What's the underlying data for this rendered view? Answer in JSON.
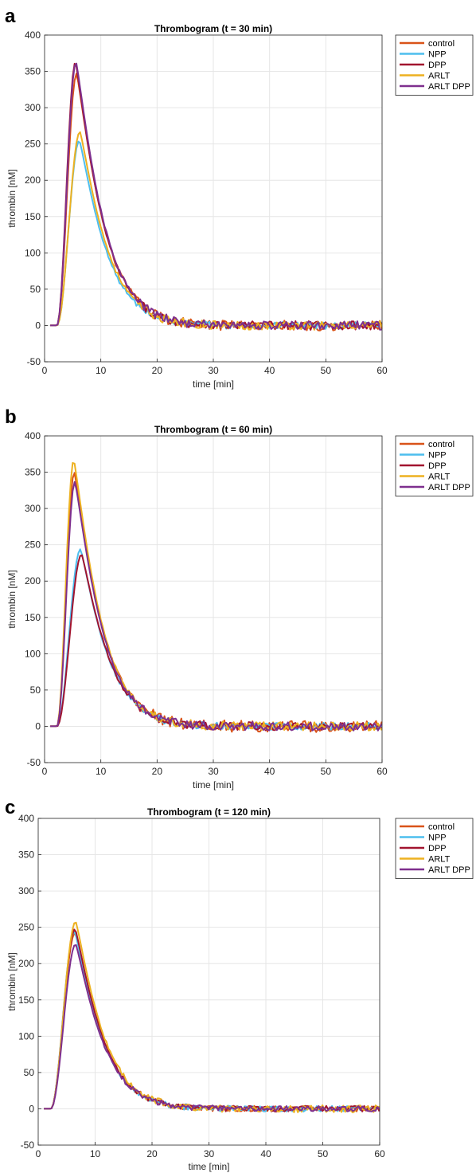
{
  "figure": {
    "panel_labels": [
      "a",
      "b",
      "c"
    ]
  },
  "series_colors": {
    "control": "#D95319",
    "NPP": "#4DBEEE",
    "DPP": "#A2142F",
    "ARLT": "#EDB120",
    "ARLT DPP": "#7E2F8E"
  },
  "chart_data": [
    {
      "type": "line",
      "panel": "a",
      "title": "Thrombogram (t = 30 min)",
      "xlabel": "time [min]",
      "ylabel": "thrombin [nM]",
      "xlim": [
        0,
        60
      ],
      "ylim": [
        -50,
        400
      ],
      "xticks": [
        0,
        10,
        20,
        30,
        40,
        50,
        60
      ],
      "yticks": [
        -50,
        0,
        50,
        100,
        150,
        200,
        250,
        300,
        350,
        400
      ],
      "grid": true,
      "legend_position": "outside-top-right",
      "series": [
        {
          "name": "control",
          "x_start": 1,
          "x_end": 60,
          "peak": 347,
          "peak_time": 5.7,
          "noise": 7
        },
        {
          "name": "NPP",
          "x_start": 1,
          "x_end": 60,
          "peak": 255,
          "peak_time": 6.2,
          "noise": 5
        },
        {
          "name": "DPP",
          "x_start": 1,
          "x_end": 60,
          "peak": 363,
          "peak_time": 5.5,
          "noise": 6
        },
        {
          "name": "ARLT",
          "x_start": 1,
          "x_end": 60,
          "peak": 267,
          "peak_time": 6.3,
          "noise": 6
        },
        {
          "name": "ARLT DPP",
          "x_start": 1,
          "x_end": 60,
          "peak": 363,
          "peak_time": 5.6,
          "noise": 6
        }
      ]
    },
    {
      "type": "line",
      "panel": "b",
      "title": "Thrombogram (t = 60 min)",
      "xlabel": "time [min]",
      "ylabel": "thrombin [nM]",
      "xlim": [
        0,
        60
      ],
      "ylim": [
        -50,
        400
      ],
      "xticks": [
        0,
        10,
        20,
        30,
        40,
        50,
        60
      ],
      "yticks": [
        -50,
        0,
        50,
        100,
        150,
        200,
        250,
        300,
        350,
        400
      ],
      "grid": true,
      "legend_position": "outside-top-right",
      "series": [
        {
          "name": "control",
          "x_start": 1,
          "x_end": 60,
          "peak": 350,
          "peak_time": 5.3,
          "noise": 8
        },
        {
          "name": "NPP",
          "x_start": 1,
          "x_end": 60,
          "peak": 244,
          "peak_time": 6.4,
          "noise": 5
        },
        {
          "name": "DPP",
          "x_start": 1,
          "x_end": 60,
          "peak": 237,
          "peak_time": 6.6,
          "noise": 6
        },
        {
          "name": "ARLT",
          "x_start": 1,
          "x_end": 60,
          "peak": 367,
          "peak_time": 5.2,
          "noise": 6
        },
        {
          "name": "ARLT DPP",
          "x_start": 1,
          "x_end": 60,
          "peak": 337,
          "peak_time": 5.4,
          "noise": 6
        }
      ]
    },
    {
      "type": "line",
      "panel": "c",
      "title": "Thrombogram (t = 120 min)",
      "xlabel": "time [min]",
      "ylabel": "thrombin [nM]",
      "xlim": [
        0,
        60
      ],
      "ylim": [
        -50,
        400
      ],
      "xticks": [
        0,
        10,
        20,
        30,
        40,
        50,
        60
      ],
      "yticks": [
        -50,
        0,
        50,
        100,
        150,
        200,
        250,
        300,
        350,
        400
      ],
      "grid": true,
      "legend_position": "outside-top-right",
      "series": [
        {
          "name": "control",
          "x_start": 1,
          "x_end": 60,
          "peak": 243,
          "peak_time": 6.5,
          "noise": 4
        },
        {
          "name": "NPP",
          "x_start": 1,
          "x_end": 60,
          "peak": 245,
          "peak_time": 6.4,
          "noise": 4
        },
        {
          "name": "DPP",
          "x_start": 1,
          "x_end": 60,
          "peak": 248,
          "peak_time": 6.5,
          "noise": 4
        },
        {
          "name": "ARLT",
          "x_start": 1,
          "x_end": 60,
          "peak": 258,
          "peak_time": 6.6,
          "noise": 5
        },
        {
          "name": "ARLT DPP",
          "x_start": 1,
          "x_end": 60,
          "peak": 227,
          "peak_time": 6.6,
          "noise": 4
        }
      ]
    }
  ]
}
